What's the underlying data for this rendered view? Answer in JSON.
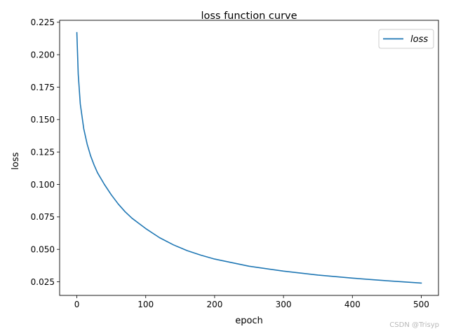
{
  "chart_data": {
    "type": "line",
    "title": "loss function curve",
    "xlabel": "epoch",
    "ylabel": "loss",
    "xlim": [
      -25,
      525
    ],
    "ylim": [
      0.0145,
      0.2265
    ],
    "xticks": [
      0,
      100,
      200,
      300,
      400,
      500
    ],
    "xtick_labels": [
      "0",
      "100",
      "200",
      "300",
      "400",
      "500"
    ],
    "yticks": [
      0.025,
      0.05,
      0.075,
      0.1,
      0.125,
      0.15,
      0.175,
      0.2,
      0.225
    ],
    "ytick_labels": [
      "0.025",
      "0.050",
      "0.075",
      "0.100",
      "0.125",
      "0.150",
      "0.175",
      "0.200",
      "0.225"
    ],
    "grid": false,
    "legend_position": "top-right",
    "series": [
      {
        "name": "loss",
        "color": "#1f77b4",
        "x": [
          0,
          2,
          5,
          10,
          15,
          20,
          25,
          30,
          40,
          50,
          60,
          70,
          80,
          90,
          100,
          120,
          140,
          160,
          180,
          200,
          250,
          300,
          350,
          400,
          450,
          500
        ],
        "y": [
          0.217,
          0.185,
          0.162,
          0.143,
          0.131,
          0.122,
          0.115,
          0.109,
          0.1,
          0.092,
          0.085,
          0.079,
          0.074,
          0.07,
          0.066,
          0.059,
          0.0535,
          0.049,
          0.0455,
          0.0425,
          0.037,
          0.0332,
          0.0302,
          0.0278,
          0.0258,
          0.024
        ]
      }
    ]
  },
  "watermark": "CSDN @Trisyp"
}
